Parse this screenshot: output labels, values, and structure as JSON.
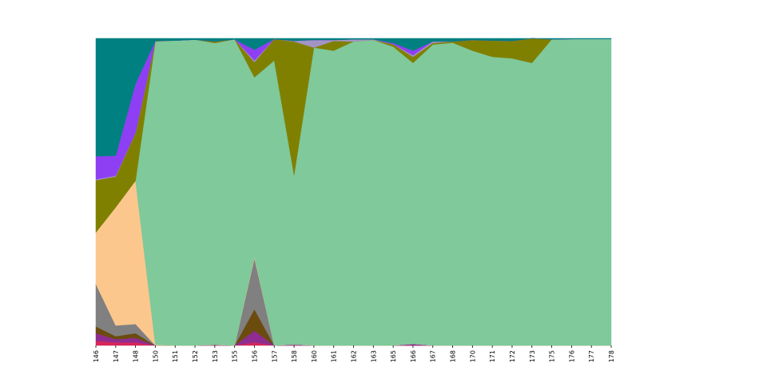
{
  "chart_data": {
    "type": "area",
    "stacked": true,
    "normalized": true,
    "x": [
      "146",
      "147",
      "148",
      "150",
      "151",
      "152",
      "153",
      "155",
      "156",
      "157",
      "158",
      "160",
      "161",
      "162",
      "163",
      "165",
      "166",
      "167",
      "168",
      "170",
      "171",
      "172",
      "173",
      "175",
      "176",
      "177",
      "178"
    ],
    "ylim": [
      0,
      1
    ],
    "grid": false,
    "legend": "none",
    "axes_spines": false,
    "series": [
      {
        "color": "#d6255b",
        "values": [
          0.015,
          0.01,
          0.01,
          0,
          0,
          0,
          0,
          0,
          0.01,
          0,
          0,
          0,
          0,
          0,
          0,
          0,
          0,
          0,
          0,
          0,
          0,
          0,
          0,
          0,
          0,
          0,
          0
        ]
      },
      {
        "color": "#8e2d8f",
        "values": [
          0.025,
          0.01,
          0.015,
          0,
          0,
          0,
          0.002,
          0,
          0.038,
          0,
          0.003,
          0,
          0,
          0,
          0,
          0,
          0.005,
          0,
          0,
          0,
          0,
          0,
          0,
          0,
          0,
          0,
          0
        ]
      },
      {
        "color": "#6b4c0e",
        "values": [
          0.022,
          0.01,
          0.015,
          0,
          0,
          0,
          0,
          0,
          0.07,
          0,
          0,
          0,
          0,
          0,
          0,
          0,
          0,
          0,
          0,
          0,
          0,
          0,
          0,
          0,
          0,
          0,
          0
        ]
      },
      {
        "color": "#808080",
        "values": [
          0.138,
          0.035,
          0.03,
          0,
          0,
          0,
          0,
          0,
          0.167,
          0,
          0,
          0,
          0,
          0,
          0,
          0,
          0,
          0,
          0,
          0,
          0,
          0,
          0,
          0,
          0,
          0,
          0
        ]
      },
      {
        "color": "#fcc78d",
        "values": [
          0.168,
          0.385,
          0.468,
          0.002,
          0,
          0,
          0,
          0,
          0.005,
          0,
          0,
          0,
          0,
          0,
          0,
          0,
          0,
          0,
          0,
          0,
          0,
          0,
          0,
          0,
          0,
          0,
          0
        ]
      },
      {
        "color": "#7fc99b",
        "values": [
          0,
          0,
          0,
          0.988,
          0.993,
          0.996,
          0.983,
          0.997,
          0.583,
          0.928,
          0.552,
          0.97,
          0.96,
          0.99,
          0.995,
          0.973,
          0.915,
          0.98,
          0.986,
          0.96,
          0.94,
          0.935,
          0.92,
          0.997,
          0.998,
          0.998,
          0.998
        ]
      },
      {
        "color": "#808000",
        "values": [
          0.17,
          0.1,
          0.157,
          0.002,
          0,
          0,
          0.005,
          0,
          0.05,
          0.07,
          0.435,
          0,
          0.032,
          0,
          0,
          0.008,
          0.02,
          0.005,
          0.004,
          0.035,
          0.053,
          0.057,
          0.08,
          0,
          0,
          0,
          0
        ]
      },
      {
        "color": "#a394c6",
        "values": [
          0.003,
          0.003,
          0,
          0,
          0,
          0,
          0,
          0,
          0.005,
          0,
          0.002,
          0.025,
          0.003,
          0.007,
          0.002,
          0,
          0.005,
          0.005,
          0,
          0,
          0,
          0,
          0,
          0,
          0,
          0,
          0
        ]
      },
      {
        "color": "#8e3ff4",
        "values": [
          0.075,
          0.065,
          0.16,
          0,
          0,
          0,
          0,
          0,
          0.035,
          0,
          0,
          0,
          0,
          0,
          0,
          0.004,
          0.015,
          0,
          0,
          0,
          0,
          0,
          0,
          0,
          0,
          0,
          0
        ]
      },
      {
        "color": "#008080",
        "values": [
          0.384,
          0.382,
          0.148,
          0.008,
          0.007,
          0.004,
          0.01,
          0.003,
          0.037,
          0.002,
          0.008,
          0.005,
          0.005,
          0.003,
          0.003,
          0.015,
          0.04,
          0.01,
          0.01,
          0.005,
          0.007,
          0.008,
          0,
          0.003,
          0.002,
          0.002,
          0.002
        ]
      }
    ]
  }
}
